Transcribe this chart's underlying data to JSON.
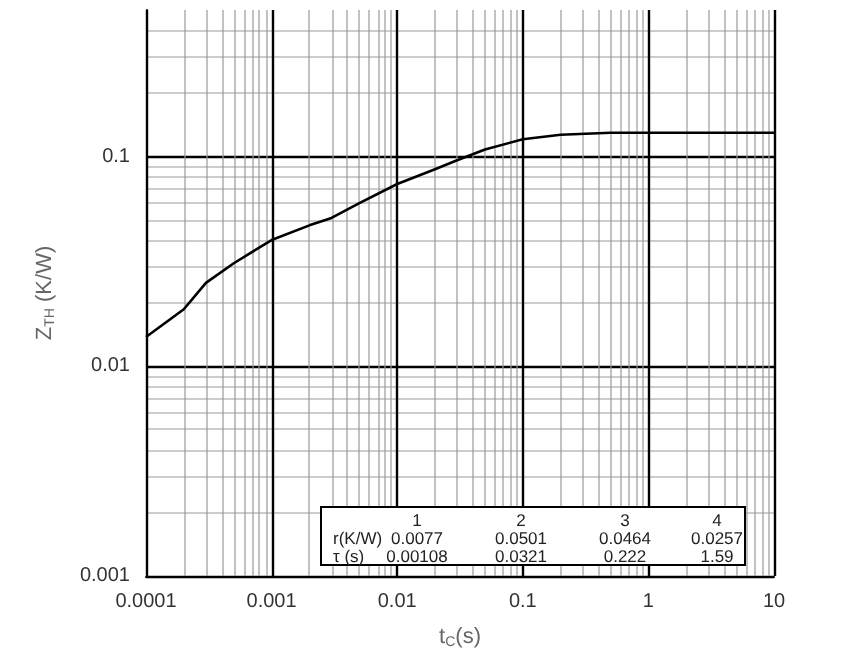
{
  "chart_data": {
    "type": "line",
    "xlabel": "t$_{C}$(s)",
    "ylabel": "Z$_{TH}$ (K/W)",
    "x": [
      0.0001,
      0.0002,
      0.0003,
      0.0005,
      0.001,
      0.002,
      0.003,
      0.005,
      0.01,
      0.02,
      0.03,
      0.05,
      0.1,
      0.2,
      0.5,
      1,
      10
    ],
    "series": [
      {
        "color": "#000000",
        "values": [
          0.0138,
          0.0187,
          0.025,
          0.031,
          0.04,
          0.047,
          0.051,
          0.06,
          0.074,
          0.087,
          0.096,
          0.108,
          0.121,
          0.127,
          0.13,
          0.13,
          0.13
        ]
      }
    ],
    "log": "xy",
    "xlim": [
      0.0001,
      10
    ],
    "xticks": [
      {
        "value": 0.0001,
        "label": "0.0001"
      },
      {
        "value": 0.001,
        "label": "0.001"
      },
      {
        "value": 0.01,
        "label": "0.01"
      },
      {
        "value": 0.1,
        "label": "0.1"
      },
      1,
      10
    ],
    "ylim": [
      0.001,
      0.5
    ],
    "yticks": [
      {
        "value": 0.001,
        "label": "0.001"
      },
      {
        "value": 0.01,
        "label": "0.01"
      },
      {
        "value": 0.1,
        "label": "0.1"
      }
    ],
    "grid": true,
    "marker": "none",
    "line_style": "solid",
    "annotations": [
      "1",
      "2",
      "3",
      "4",
      "r(K/W)",
      "0.0077",
      "0.0501",
      "0.0464",
      "0.0257",
      "τ (s)",
      "0.00108",
      "0.0321",
      "0.222",
      "1.59"
    ]
  }
}
